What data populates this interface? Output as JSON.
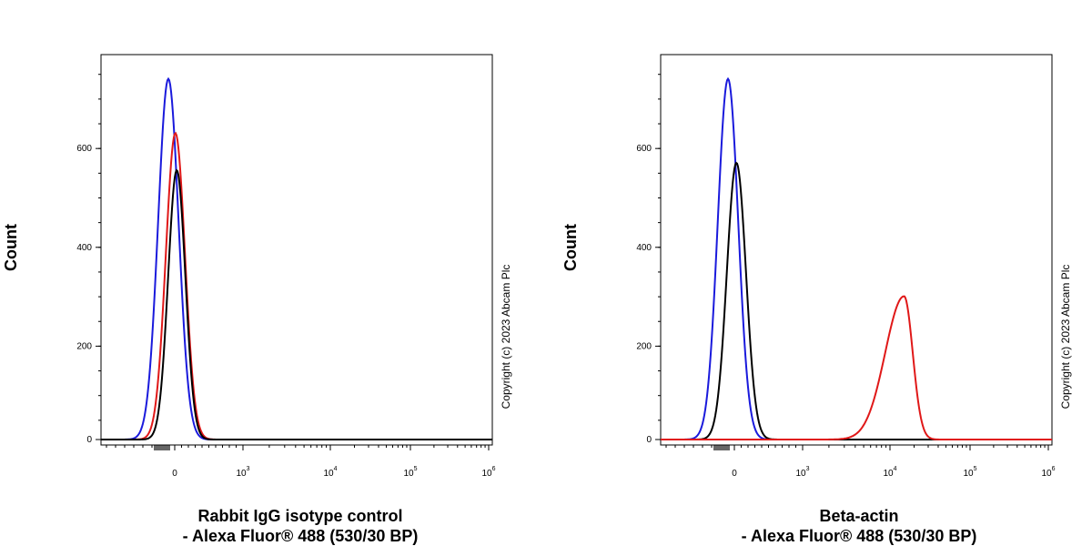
{
  "colors": {
    "blue": "#1a1adc",
    "red": "#e01818",
    "black": "#000000",
    "axis": "#000000"
  },
  "copyright": "Copyright (c) 2023 Abcam Plc",
  "chart_data": [
    {
      "type": "line",
      "ylabel": "Count",
      "xlabel_line1": "Rabbit IgG isotype control",
      "xlabel_line2": "- Alexa Fluor® 488 (530/30 BP)",
      "x_scale": "biexponential",
      "y_ticks": [
        "0",
        "200",
        "400",
        "600"
      ],
      "ylim": [
        0,
        790
      ],
      "x_ticks": [
        {
          "base": "0",
          "exp": ""
        },
        {
          "base": "10",
          "exp": "3"
        },
        {
          "base": "10",
          "exp": "4"
        },
        {
          "base": "10",
          "exp": "5"
        },
        {
          "base": "10",
          "exp": "6"
        }
      ],
      "series": [
        {
          "color": "blue",
          "peak": 730,
          "center": -100,
          "spread": 160
        },
        {
          "color": "red",
          "peak": 620,
          "center": 10,
          "spread": 150
        },
        {
          "color": "black",
          "peak": 545,
          "center": 30,
          "spread": 135
        }
      ]
    },
    {
      "type": "line",
      "ylabel": "Count",
      "xlabel_line1": "Beta-actin",
      "xlabel_line2": "- Alexa Fluor® 488 (530/30 BP)",
      "x_scale": "biexponential",
      "y_ticks": [
        "0",
        "200",
        "400",
        "600"
      ],
      "ylim": [
        0,
        790
      ],
      "x_ticks": [
        {
          "base": "0",
          "exp": ""
        },
        {
          "base": "10",
          "exp": "3"
        },
        {
          "base": "10",
          "exp": "4"
        },
        {
          "base": "10",
          "exp": "5"
        },
        {
          "base": "10",
          "exp": "6"
        }
      ],
      "series": [
        {
          "color": "blue",
          "peak": 730,
          "center": -100,
          "spread": 160
        },
        {
          "color": "black",
          "peak": 560,
          "center": 30,
          "spread": 150
        },
        {
          "color": "red",
          "peak": 290,
          "center": 15000,
          "spread": 0.18
        }
      ]
    }
  ]
}
